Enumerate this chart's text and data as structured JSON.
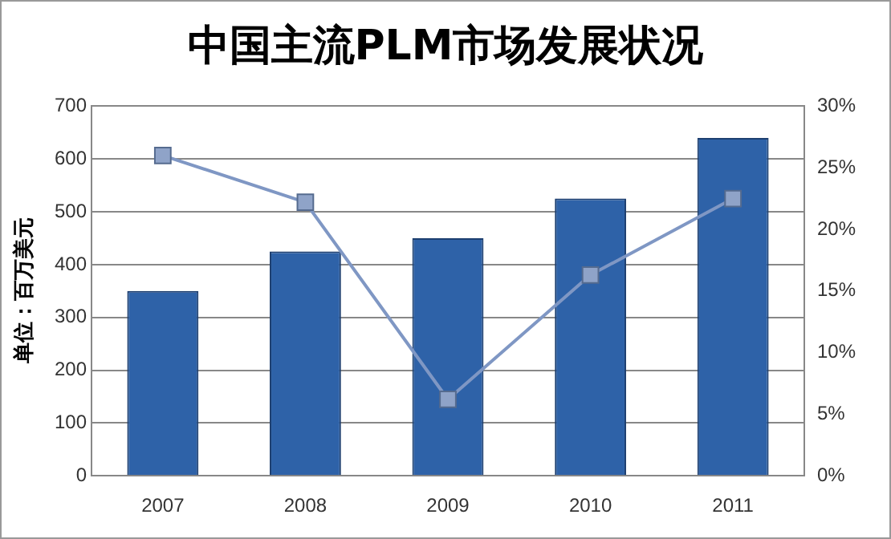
{
  "chart_data": {
    "type": "bar",
    "title": "中国主流PLM市场发展状况",
    "ylabel": "单位：百万美元",
    "categories": [
      "2007",
      "2008",
      "2009",
      "2010",
      "2011"
    ],
    "series": [
      {
        "color": "#2e62a8",
        "values": [
          350,
          425,
          450,
          525,
          640
        ]
      },
      {
        "type": "line",
        "axis": "y2",
        "color": "#7f97c4",
        "values": [
          26,
          22.2,
          6.2,
          16.3,
          22.5
        ]
      }
    ],
    "ylim": [
      0,
      700
    ],
    "yticks": [
      0,
      100,
      200,
      300,
      400,
      500,
      600,
      700
    ],
    "y2lim": [
      0,
      30
    ],
    "y2ticks": [
      {
        "value": 0,
        "label": "0%"
      },
      {
        "value": 5,
        "label": "5%"
      },
      {
        "value": 10,
        "label": "10%"
      },
      {
        "value": 15,
        "label": "15%"
      },
      {
        "value": 20,
        "label": "20%"
      },
      {
        "value": 25,
        "label": "25%"
      },
      {
        "value": 30,
        "label": "30%"
      }
    ],
    "grid": "y",
    "marker": "square",
    "legend": false
  }
}
